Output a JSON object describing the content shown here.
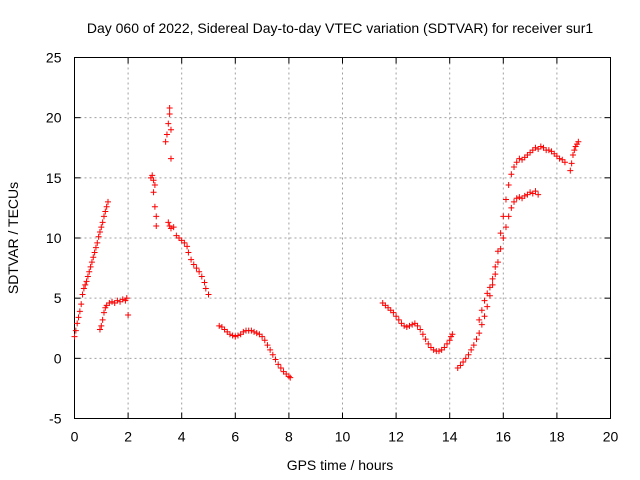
{
  "chart_data": {
    "type": "scatter",
    "title": "Day 060 of 2022, Sidereal Day-to-day VTEC variation (SDTVAR) for receiver sur1",
    "xlabel": "GPS time / hours",
    "ylabel": "SDTVAR / TECUs",
    "xlim": [
      0,
      20
    ],
    "ylim": [
      -5,
      25
    ],
    "xticks": [
      0,
      2,
      4,
      6,
      8,
      10,
      12,
      14,
      16,
      18,
      20
    ],
    "yticks": [
      -5,
      0,
      5,
      10,
      15,
      20,
      25
    ],
    "grid": true,
    "marker": "plus",
    "color": "#ff0000",
    "series": [
      {
        "name": "SDTVAR",
        "points": [
          [
            0.0,
            1.8
          ],
          [
            0.05,
            2.3
          ],
          [
            0.1,
            2.9
          ],
          [
            0.15,
            3.4
          ],
          [
            0.2,
            3.9
          ],
          [
            0.25,
            4.5
          ],
          [
            0.3,
            5.3
          ],
          [
            0.35,
            5.8
          ],
          [
            0.4,
            6.1
          ],
          [
            0.45,
            6.4
          ],
          [
            0.5,
            6.8
          ],
          [
            0.55,
            7.2
          ],
          [
            0.6,
            7.6
          ],
          [
            0.65,
            8.0
          ],
          [
            0.7,
            8.4
          ],
          [
            0.75,
            8.8
          ],
          [
            0.8,
            9.2
          ],
          [
            0.85,
            9.6
          ],
          [
            0.9,
            10.1
          ],
          [
            0.95,
            10.5
          ],
          [
            1.0,
            10.9
          ],
          [
            1.05,
            11.3
          ],
          [
            1.1,
            11.8
          ],
          [
            1.15,
            12.2
          ],
          [
            1.2,
            12.6
          ],
          [
            1.25,
            13.0
          ],
          [
            0.95,
            2.4
          ],
          [
            1.0,
            2.7
          ],
          [
            1.05,
            3.2
          ],
          [
            1.1,
            3.8
          ],
          [
            1.15,
            4.2
          ],
          [
            1.2,
            4.4
          ],
          [
            1.3,
            4.6
          ],
          [
            1.4,
            4.7
          ],
          [
            1.5,
            4.6
          ],
          [
            1.6,
            4.8
          ],
          [
            1.7,
            4.7
          ],
          [
            1.8,
            4.9
          ],
          [
            1.9,
            4.8
          ],
          [
            1.95,
            5.0
          ],
          [
            2.0,
            3.6
          ],
          [
            2.85,
            15.0
          ],
          [
            2.9,
            15.2
          ],
          [
            2.95,
            14.8
          ],
          [
            3.0,
            14.4
          ],
          [
            2.95,
            13.8
          ],
          [
            3.0,
            12.6
          ],
          [
            3.05,
            11.8
          ],
          [
            3.05,
            11.0
          ],
          [
            3.4,
            18.0
          ],
          [
            3.45,
            18.6
          ],
          [
            3.5,
            19.5
          ],
          [
            3.55,
            20.3
          ],
          [
            3.55,
            20.8
          ],
          [
            3.6,
            19.0
          ],
          [
            3.6,
            16.6
          ],
          [
            3.5,
            11.3
          ],
          [
            3.55,
            11.0
          ],
          [
            3.6,
            10.8
          ],
          [
            3.7,
            10.9
          ],
          [
            3.8,
            10.2
          ],
          [
            3.9,
            10.0
          ],
          [
            4.0,
            9.8
          ],
          [
            4.1,
            9.6
          ],
          [
            4.2,
            9.3
          ],
          [
            4.25,
            8.8
          ],
          [
            4.35,
            8.2
          ],
          [
            4.45,
            7.8
          ],
          [
            4.55,
            7.5
          ],
          [
            4.65,
            7.2
          ],
          [
            4.75,
            6.8
          ],
          [
            4.85,
            6.3
          ],
          [
            4.9,
            5.8
          ],
          [
            5.0,
            5.3
          ],
          [
            5.4,
            2.7
          ],
          [
            5.5,
            2.6
          ],
          [
            5.6,
            2.4
          ],
          [
            5.7,
            2.2
          ],
          [
            5.8,
            2.0
          ],
          [
            5.9,
            1.9
          ],
          [
            6.0,
            1.8
          ],
          [
            6.1,
            1.9
          ],
          [
            6.2,
            2.0
          ],
          [
            6.3,
            2.2
          ],
          [
            6.4,
            2.3
          ],
          [
            6.5,
            2.3
          ],
          [
            6.6,
            2.3
          ],
          [
            6.7,
            2.2
          ],
          [
            6.8,
            2.1
          ],
          [
            6.9,
            2.0
          ],
          [
            7.0,
            1.8
          ],
          [
            7.1,
            1.5
          ],
          [
            7.2,
            1.1
          ],
          [
            7.3,
            0.7
          ],
          [
            7.4,
            0.3
          ],
          [
            7.5,
            -0.1
          ],
          [
            7.6,
            -0.5
          ],
          [
            7.7,
            -0.8
          ],
          [
            7.8,
            -1.1
          ],
          [
            7.9,
            -1.3
          ],
          [
            8.0,
            -1.5
          ],
          [
            8.05,
            -1.6
          ],
          [
            11.5,
            4.6
          ],
          [
            11.6,
            4.4
          ],
          [
            11.7,
            4.2
          ],
          [
            11.8,
            4.0
          ],
          [
            11.9,
            3.8
          ],
          [
            12.0,
            3.5
          ],
          [
            12.1,
            3.2
          ],
          [
            12.2,
            2.9
          ],
          [
            12.3,
            2.7
          ],
          [
            12.4,
            2.6
          ],
          [
            12.5,
            2.7
          ],
          [
            12.6,
            2.8
          ],
          [
            12.7,
            2.9
          ],
          [
            12.8,
            2.7
          ],
          [
            12.9,
            2.4
          ],
          [
            13.0,
            2.0
          ],
          [
            13.1,
            1.6
          ],
          [
            13.2,
            1.2
          ],
          [
            13.3,
            0.9
          ],
          [
            13.4,
            0.7
          ],
          [
            13.5,
            0.6
          ],
          [
            13.6,
            0.6
          ],
          [
            13.7,
            0.7
          ],
          [
            13.8,
            0.9
          ],
          [
            13.9,
            1.2
          ],
          [
            14.0,
            1.5
          ],
          [
            14.05,
            1.8
          ],
          [
            14.1,
            2.0
          ],
          [
            14.3,
            -0.8
          ],
          [
            14.4,
            -0.6
          ],
          [
            14.5,
            -0.3
          ],
          [
            14.6,
            0.0
          ],
          [
            14.7,
            0.3
          ],
          [
            14.8,
            0.7
          ],
          [
            14.9,
            1.1
          ],
          [
            15.0,
            1.6
          ],
          [
            15.1,
            2.1
          ],
          [
            15.2,
            2.8
          ],
          [
            15.3,
            3.5
          ],
          [
            15.4,
            4.3
          ],
          [
            15.5,
            5.2
          ],
          [
            15.6,
            6.1
          ],
          [
            15.7,
            7.0
          ],
          [
            15.8,
            8.0
          ],
          [
            15.9,
            9.1
          ],
          [
            16.0,
            10.0
          ],
          [
            16.1,
            10.9
          ],
          [
            16.2,
            11.8
          ],
          [
            16.3,
            12.5
          ],
          [
            16.4,
            13.0
          ],
          [
            16.5,
            13.3
          ],
          [
            16.6,
            13.4
          ],
          [
            16.7,
            13.3
          ],
          [
            16.8,
            13.5
          ],
          [
            16.9,
            13.6
          ],
          [
            17.0,
            13.8
          ],
          [
            17.1,
            13.7
          ],
          [
            17.2,
            13.9
          ],
          [
            17.3,
            13.6
          ],
          [
            15.1,
            3.2
          ],
          [
            15.2,
            4.0
          ],
          [
            15.3,
            4.8
          ],
          [
            15.4,
            5.4
          ],
          [
            15.5,
            5.9
          ],
          [
            15.6,
            6.6
          ],
          [
            15.7,
            7.6
          ],
          [
            15.8,
            8.9
          ],
          [
            15.9,
            10.4
          ],
          [
            16.0,
            11.8
          ],
          [
            16.1,
            13.2
          ],
          [
            16.2,
            14.4
          ],
          [
            16.3,
            15.3
          ],
          [
            16.4,
            15.9
          ],
          [
            16.5,
            16.3
          ],
          [
            16.6,
            16.6
          ],
          [
            16.7,
            16.5
          ],
          [
            16.8,
            16.7
          ],
          [
            16.9,
            16.9
          ],
          [
            17.0,
            17.1
          ],
          [
            17.1,
            17.3
          ],
          [
            17.2,
            17.5
          ],
          [
            17.3,
            17.4
          ],
          [
            17.4,
            17.6
          ],
          [
            17.5,
            17.5
          ],
          [
            17.6,
            17.3
          ],
          [
            17.7,
            17.3
          ],
          [
            17.8,
            17.2
          ],
          [
            17.9,
            17.0
          ],
          [
            18.0,
            16.8
          ],
          [
            18.1,
            16.6
          ],
          [
            18.2,
            16.5
          ],
          [
            18.3,
            16.3
          ],
          [
            18.5,
            15.6
          ],
          [
            18.55,
            16.2
          ],
          [
            18.6,
            16.9
          ],
          [
            18.65,
            17.3
          ],
          [
            18.7,
            17.6
          ],
          [
            18.75,
            17.8
          ],
          [
            18.8,
            18.0
          ]
        ]
      }
    ]
  }
}
